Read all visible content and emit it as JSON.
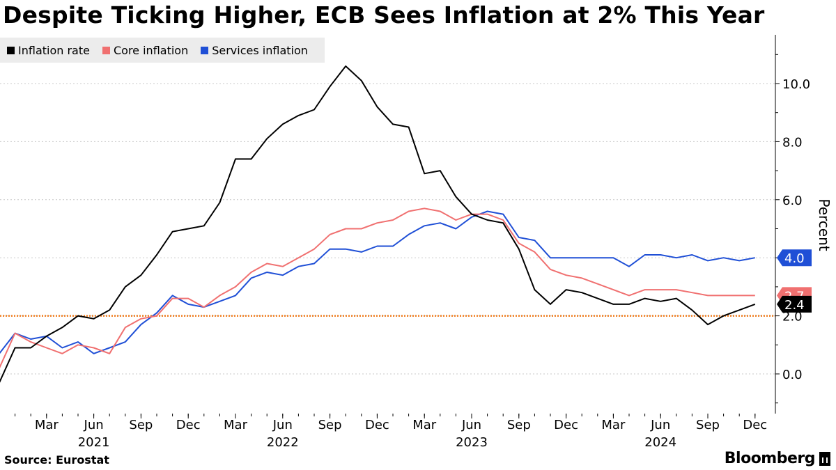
{
  "title": "Despite Ticking Higher, ECB Sees Inflation at 2% This Year",
  "source": "Source: Eurostat",
  "brand": "Bloomberg",
  "chart_data": {
    "type": "line",
    "ylabel": "Percent",
    "ylim": [
      -1.3,
      11.6
    ],
    "yticks": [
      0.0,
      2.0,
      4.0,
      6.0,
      8.0,
      10.0
    ],
    "ytick_labels": [
      "0.0",
      "2.0",
      "4.0",
      "6.0",
      "8.0",
      "10.0"
    ],
    "x_start": "2020-12",
    "x_end": "2025-01",
    "x_tick_months": [
      "2021-03",
      "2021-06",
      "2021-09",
      "2021-12",
      "2022-03",
      "2022-06",
      "2022-09",
      "2022-12",
      "2023-03",
      "2023-06",
      "2023-09",
      "2023-12",
      "2024-03",
      "2024-06",
      "2024-09",
      "2024-12"
    ],
    "x_tick_labels": [
      "Mar",
      "Jun",
      "Sep",
      "Dec",
      "Mar",
      "Jun",
      "Sep",
      "Dec",
      "Mar",
      "Jun",
      "Sep",
      "Dec",
      "Mar",
      "Jun",
      "Sep",
      "Dec"
    ],
    "year_labels": [
      {
        "month": "2021-06",
        "label": "2021"
      },
      {
        "month": "2022-06",
        "label": "2022"
      },
      {
        "month": "2023-06",
        "label": "2023"
      },
      {
        "month": "2024-06",
        "label": "2024"
      }
    ],
    "months": [
      "2020-12",
      "2021-01",
      "2021-02",
      "2021-03",
      "2021-04",
      "2021-05",
      "2021-06",
      "2021-07",
      "2021-08",
      "2021-09",
      "2021-10",
      "2021-11",
      "2021-12",
      "2022-01",
      "2022-02",
      "2022-03",
      "2022-04",
      "2022-05",
      "2022-06",
      "2022-07",
      "2022-08",
      "2022-09",
      "2022-10",
      "2022-11",
      "2022-12",
      "2023-01",
      "2023-02",
      "2023-03",
      "2023-04",
      "2023-05",
      "2023-06",
      "2023-07",
      "2023-08",
      "2023-09",
      "2023-10",
      "2023-11",
      "2023-12",
      "2024-01",
      "2024-02",
      "2024-03",
      "2024-04",
      "2024-05",
      "2024-06",
      "2024-07",
      "2024-08",
      "2024-09",
      "2024-10",
      "2024-11",
      "2024-12"
    ],
    "reference_line": {
      "value": 2.0,
      "color": "#f07d1e"
    },
    "series": [
      {
        "name": "Inflation rate",
        "color": "#000000",
        "end_label": "2.4",
        "values": [
          -0.3,
          0.9,
          0.9,
          1.3,
          1.6,
          2.0,
          1.9,
          2.2,
          3.0,
          3.4,
          4.1,
          4.9,
          5.0,
          5.1,
          5.9,
          7.4,
          7.4,
          8.1,
          8.6,
          8.9,
          9.1,
          9.9,
          10.6,
          10.1,
          9.2,
          8.6,
          8.5,
          6.9,
          7.0,
          6.1,
          5.5,
          5.3,
          5.2,
          4.3,
          2.9,
          2.4,
          2.9,
          2.8,
          2.6,
          2.4,
          2.4,
          2.6,
          2.5,
          2.6,
          2.2,
          1.7,
          2.0,
          2.2,
          2.4
        ]
      },
      {
        "name": "Core inflation",
        "color": "#f07070",
        "end_label": "2.7",
        "values": [
          0.2,
          1.4,
          1.1,
          0.9,
          0.7,
          1.0,
          0.9,
          0.7,
          1.6,
          1.9,
          2.0,
          2.6,
          2.6,
          2.3,
          2.7,
          3.0,
          3.5,
          3.8,
          3.7,
          4.0,
          4.3,
          4.8,
          5.0,
          5.0,
          5.2,
          5.3,
          5.6,
          5.7,
          5.6,
          5.3,
          5.5,
          5.5,
          5.3,
          4.5,
          4.2,
          3.6,
          3.4,
          3.3,
          3.1,
          2.9,
          2.7,
          2.9,
          2.9,
          2.9,
          2.8,
          2.7,
          2.7,
          2.7,
          2.7
        ]
      },
      {
        "name": "Services inflation",
        "color": "#1f4fd6",
        "end_label": "4.0",
        "values": [
          0.7,
          1.4,
          1.2,
          1.3,
          0.9,
          1.1,
          0.7,
          0.9,
          1.1,
          1.7,
          2.1,
          2.7,
          2.4,
          2.3,
          2.5,
          2.7,
          3.3,
          3.5,
          3.4,
          3.7,
          3.8,
          4.3,
          4.3,
          4.2,
          4.4,
          4.4,
          4.8,
          5.1,
          5.2,
          5.0,
          5.4,
          5.6,
          5.5,
          4.7,
          4.6,
          4.0,
          4.0,
          4.0,
          4.0,
          4.0,
          3.7,
          4.1,
          4.1,
          4.0,
          4.1,
          3.9,
          4.0,
          3.9,
          4.0
        ]
      }
    ]
  }
}
